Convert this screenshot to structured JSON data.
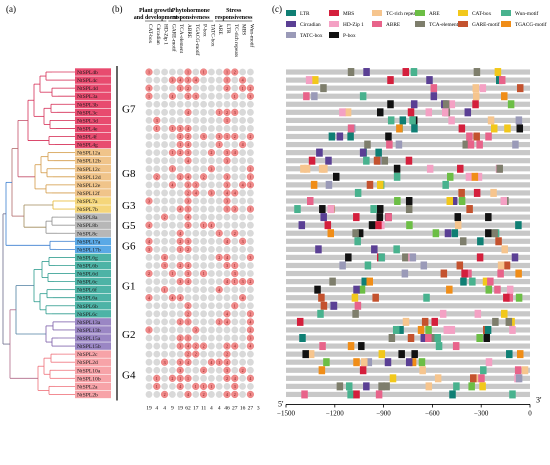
{
  "panels": {
    "a": "(a)",
    "b": "(b)",
    "c": "(c)"
  },
  "colors": {
    "G7": "#e84b6f",
    "G8": "#f0c48a",
    "G3": "#f5d67a",
    "G5": "#b7b7b7",
    "G6": "#5aa9e6",
    "G1": "#4db3a6",
    "G2": "#9a86c4",
    "G4": "#f7a3a8",
    "tree_G7": "#d62f57",
    "tree_G8": "#d39a46",
    "tree_G3": "#e8b931",
    "tree_G5": "#8c8c8c",
    "tree_G6": "#3b7fd0",
    "tree_G1": "#2b9b8d",
    "tree_G2": "#7a5ba8",
    "tree_G4": "#ef6f78",
    "track": "#c8c8c8",
    "bubble": "#d9d9d9",
    "bubble_hot": "#f08a8a"
  },
  "groups": [
    {
      "id": "G7",
      "label": "G7",
      "genes": [
        "NtSPL4b",
        "NtSPL4c",
        "NtSPL4d",
        "NtSPL3a",
        "NtSPL3b",
        "NtSPL3c",
        "NtSPL3d",
        "NtSPL4e",
        "NtSPL4f",
        "NtSPL4g"
      ]
    },
    {
      "id": "G8",
      "label": "G8",
      "genes": [
        "NtSPL12a",
        "NtSPL12b",
        "NtSPL12c",
        "NtSPL12d",
        "NtSPL12e",
        "NtSPL12f"
      ]
    },
    {
      "id": "G3",
      "label": "G3",
      "genes": [
        "NtSPL7a",
        "NtSPL7b"
      ]
    },
    {
      "id": "G5",
      "label": "G5",
      "genes": [
        "NtSPL8a",
        "NtSPL8b",
        "NtSPL8c"
      ]
    },
    {
      "id": "G6",
      "label": "G6",
      "genes": [
        "NtSPL17a",
        "NtSPL17b"
      ]
    },
    {
      "id": "G1",
      "label": "G1",
      "genes": [
        "NtSPL6g",
        "NtSPL6b",
        "NtSPL6d",
        "NtSPL6c",
        "NtSPL6f",
        "NtSPL6a",
        "NtSPL6b",
        "NtSPL6c"
      ]
    },
    {
      "id": "G2",
      "label": "G2",
      "genes": [
        "NtSPL13a",
        "NtSPL13b",
        "NtSPL15a",
        "NtSPL15b"
      ]
    },
    {
      "id": "G4",
      "label": "G4",
      "genes": [
        "NtSPL2c",
        "NtSPL2d",
        "NtSPL10a",
        "NtSPL10b",
        "NtSPL2a",
        "NtSPL2b"
      ]
    }
  ],
  "categories": [
    {
      "name": "Plant growth and development",
      "cols": [
        "CAT-box",
        "Circadian",
        "HD-Zip 1"
      ]
    },
    {
      "name": "Phytohormone responsiveness",
      "cols": [
        "GARE-motif",
        "TCA-element",
        "ABRE",
        "TGACG-motif",
        "P-box",
        "TATC-box"
      ]
    },
    {
      "name": "Stress responsiveness",
      "cols": [
        "ARE",
        "LTR",
        "TC-rich repeats",
        "MBS",
        "Wun-motif"
      ]
    }
  ],
  "column_totals": [
    "19",
    "4",
    "4",
    "9",
    "19",
    "62",
    "17",
    "11",
    "4",
    "4",
    "46",
    "27",
    "16",
    "27",
    "3"
  ],
  "legend": [
    {
      "label": "LTR",
      "color": "#0f7f74"
    },
    {
      "label": "MBS",
      "color": "#d41f3c"
    },
    {
      "label": "TC-rich repeats",
      "color": "#f6c58e"
    },
    {
      "label": "ARE",
      "color": "#6cbe45"
    },
    {
      "label": "CAT-box",
      "color": "#f2c81b"
    },
    {
      "label": "Wun-motif",
      "color": "#48b28e"
    },
    {
      "label": "Circadian",
      "color": "#5a3f94"
    },
    {
      "label": "HD-Zip 1",
      "color": "#f4a1c4"
    },
    {
      "label": "ABRE",
      "color": "#e8638a"
    },
    {
      "label": "TCA-element",
      "color": "#7e7e6c"
    },
    {
      "label": "GARE-motif",
      "color": "#c4522e"
    },
    {
      "label": "TGACG-motif",
      "color": "#f08d17"
    },
    {
      "label": "TATC-box",
      "color": "#9a9ab8"
    },
    {
      "label": "P-box",
      "color": "#111111"
    }
  ],
  "axis": {
    "ticks": [
      "−1500",
      "−1200",
      "−900",
      "−600",
      "−300",
      "0"
    ],
    "five_prime": "5'",
    "three_prime": "3'"
  }
}
